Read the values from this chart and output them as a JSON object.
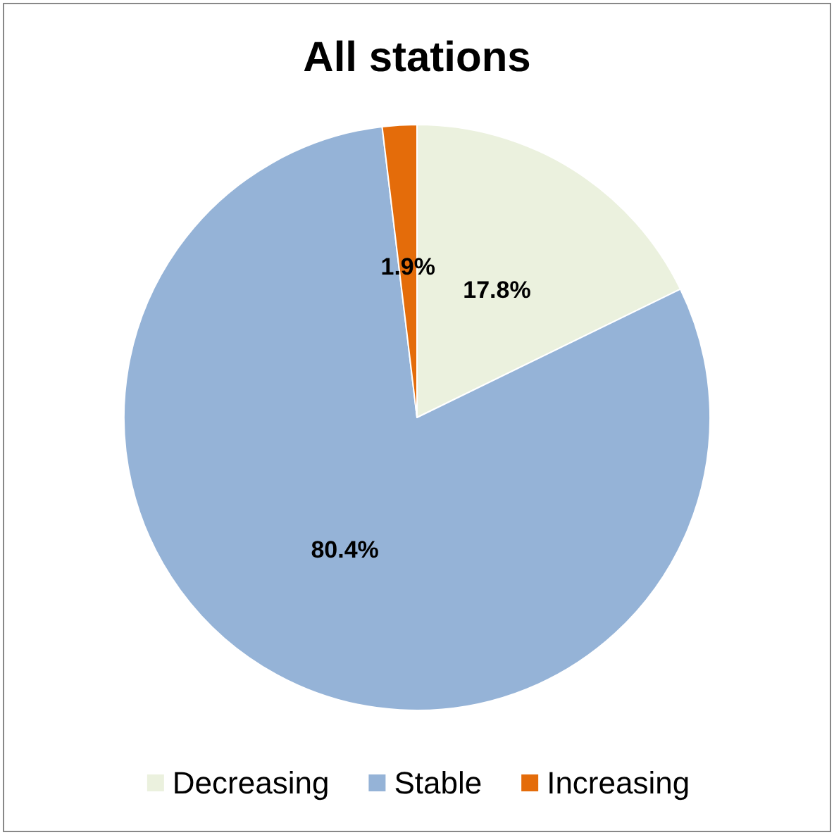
{
  "chart_data": {
    "type": "pie",
    "title": "All stations",
    "categories": [
      "Decreasing",
      "Stable",
      "Increasing"
    ],
    "values": [
      17.8,
      80.4,
      1.9
    ],
    "value_labels": [
      "17.8%",
      "80.4%",
      "1.9%"
    ],
    "colors": [
      "#ebf1de",
      "#95b3d7",
      "#e46c0a"
    ],
    "legend": "bottom"
  }
}
